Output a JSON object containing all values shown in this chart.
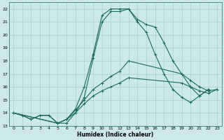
{
  "xlabel": "Humidex (Indice chaleur)",
  "background_color": "#cce8e8",
  "grid_color": "#aacfcf",
  "line_color": "#1a6b5a",
  "xlim": [
    -0.5,
    23.5
  ],
  "ylim": [
    13,
    22.5
  ],
  "yticks": [
    13,
    14,
    15,
    16,
    17,
    18,
    19,
    20,
    21,
    22
  ],
  "xticks": [
    0,
    1,
    2,
    3,
    4,
    5,
    6,
    7,
    8,
    9,
    10,
    11,
    12,
    13,
    14,
    15,
    16,
    17,
    18,
    19,
    20,
    21,
    22,
    23
  ],
  "line1_x": [
    0,
    1,
    2,
    3,
    4,
    5,
    6,
    7,
    8,
    9,
    10,
    11,
    12,
    13,
    14,
    15,
    16,
    17,
    18,
    19,
    20,
    21,
    22
  ],
  "line1_y": [
    14,
    13.8,
    13.5,
    13.8,
    13.8,
    13.2,
    13.2,
    14.0,
    15.2,
    18.2,
    21.0,
    21.8,
    21.8,
    22.0,
    21.2,
    20.8,
    20.6,
    19.4,
    18.0,
    17.0,
    16.0,
    15.3,
    15.8
  ],
  "line2_x": [
    0,
    1,
    2,
    3,
    4,
    5,
    6,
    7,
    8,
    9,
    10,
    11,
    12,
    13,
    14,
    15,
    16,
    17,
    18,
    19,
    20,
    21,
    22
  ],
  "line2_y": [
    14,
    13.8,
    13.5,
    13.8,
    13.8,
    13.2,
    13.5,
    14.3,
    16.0,
    18.5,
    21.5,
    22.0,
    22.0,
    22.0,
    21.0,
    20.2,
    18.5,
    17.0,
    15.8,
    15.2,
    14.8,
    15.3,
    15.8
  ],
  "line3_x": [
    0,
    5,
    6,
    7,
    8,
    9,
    10,
    11,
    12,
    13,
    19,
    20,
    21,
    22,
    23
  ],
  "line3_y": [
    14,
    13.2,
    13.5,
    14.2,
    15.0,
    15.8,
    16.3,
    16.8,
    17.2,
    18.0,
    17.0,
    16.5,
    16.0,
    15.7,
    15.8
  ],
  "line4_x": [
    0,
    5,
    6,
    7,
    8,
    9,
    10,
    11,
    12,
    13,
    19,
    20,
    21,
    22,
    23
  ],
  "line4_y": [
    14,
    13.2,
    13.5,
    14.0,
    14.7,
    15.3,
    15.7,
    16.0,
    16.3,
    16.7,
    16.3,
    16.0,
    15.7,
    15.5,
    15.8
  ]
}
